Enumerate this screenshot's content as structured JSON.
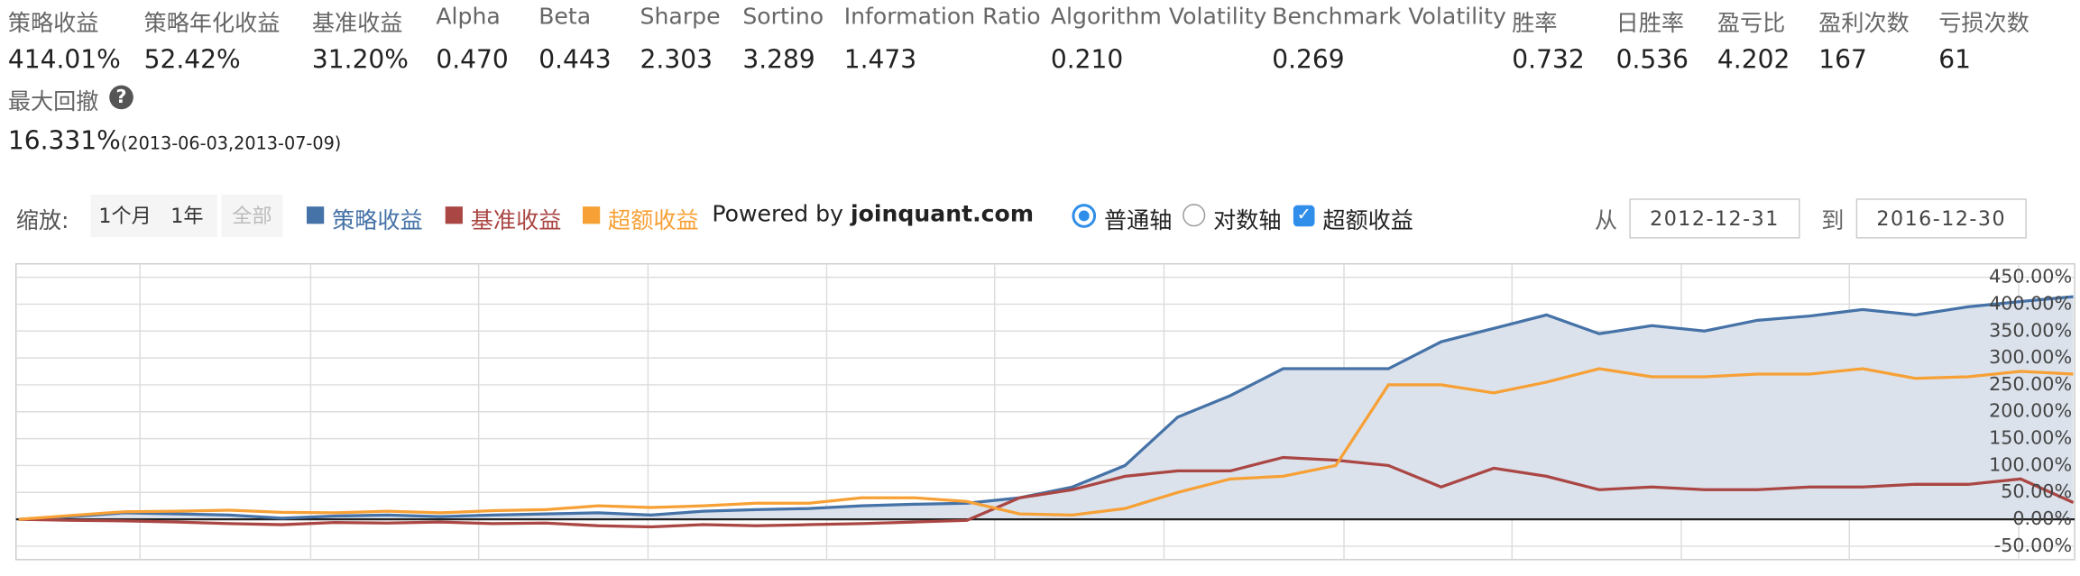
{
  "stats": [
    {
      "label": "策略收益",
      "value": "414.01%"
    },
    {
      "label": "策略年化收益",
      "value": "52.42%"
    },
    {
      "label": "基准收益",
      "value": "31.20%"
    },
    {
      "label": "Alpha",
      "value": "0.470"
    },
    {
      "label": "Beta",
      "value": "0.443"
    },
    {
      "label": "Sharpe",
      "value": "2.303"
    },
    {
      "label": "Sortino",
      "value": "3.289"
    },
    {
      "label": "Information Ratio",
      "value": "1.473"
    },
    {
      "label": "Algorithm Volatility",
      "value": "0.210"
    },
    {
      "label": "Benchmark Volatility",
      "value": "0.269"
    },
    {
      "label": "胜率",
      "value": "0.732"
    },
    {
      "label": "日胜率",
      "value": "0.536"
    },
    {
      "label": "盈亏比",
      "value": "4.202"
    },
    {
      "label": "盈利次数",
      "value": "167"
    },
    {
      "label": "亏损次数",
      "value": "61"
    }
  ],
  "drawdown": {
    "label": "最大回撤",
    "value": "16.331%",
    "period": "(2013-06-03,2013-07-09)"
  },
  "controls": {
    "zoom_label": "缩放:",
    "zoom_buttons": [
      "1个月",
      "1年",
      "全部"
    ],
    "powered_by": "Powered by",
    "site": "joinquant.com",
    "axis_options": [
      "普通轴",
      "对数轴"
    ],
    "excess_toggle": "超额收益",
    "from_label": "从",
    "from_date": "2012-12-31",
    "to_label": "到",
    "to_date": "2016-12-30"
  },
  "chart_data": {
    "type": "line",
    "ylim": [
      -75,
      475
    ],
    "yticks": [
      {
        "value": -50,
        "label": "-50.00%"
      },
      {
        "value": 0,
        "label": "0.00%"
      },
      {
        "value": 50,
        "label": "50.00%"
      },
      {
        "value": 100,
        "label": "100.00%"
      },
      {
        "value": 150,
        "label": "150.00%"
      },
      {
        "value": 200,
        "label": "200.00%"
      },
      {
        "value": 250,
        "label": "250.00%"
      },
      {
        "value": 300,
        "label": "300.00%"
      },
      {
        "value": 350,
        "label": "350.00%"
      },
      {
        "value": 400,
        "label": "400.00%"
      },
      {
        "value": 450,
        "label": "450.00%"
      }
    ],
    "grid": true,
    "series": [
      {
        "name": "策略收益",
        "color": "#4572a7",
        "area_color": "#dbe2ec",
        "values": [
          0,
          5,
          12,
          10,
          8,
          2,
          6,
          8,
          5,
          8,
          10,
          12,
          8,
          15,
          18,
          20,
          25,
          28,
          30,
          40,
          60,
          100,
          190,
          230,
          280,
          280,
          280,
          330,
          355,
          380,
          345,
          360,
          350,
          370,
          378,
          390,
          380,
          395,
          405,
          414.01
        ]
      },
      {
        "name": "基准收益",
        "color": "#aa4643",
        "values": [
          0,
          -2,
          -3,
          -5,
          -8,
          -10,
          -6,
          -7,
          -5,
          -8,
          -7,
          -12,
          -14,
          -10,
          -12,
          -10,
          -8,
          -5,
          -2,
          40,
          55,
          80,
          90,
          90,
          115,
          110,
          100,
          60,
          95,
          80,
          55,
          60,
          55,
          55,
          60,
          60,
          65,
          65,
          75,
          31.2
        ]
      },
      {
        "name": "超额收益",
        "color": "#f7a035",
        "values": [
          0,
          7,
          14,
          15,
          17,
          13,
          12,
          15,
          12,
          16,
          18,
          25,
          22,
          25,
          30,
          30,
          40,
          40,
          33,
          10,
          8,
          20,
          50,
          75,
          80,
          100,
          250,
          250,
          235,
          255,
          280,
          265,
          265,
          270,
          270,
          280,
          262,
          265,
          275,
          270
        ]
      }
    ]
  }
}
